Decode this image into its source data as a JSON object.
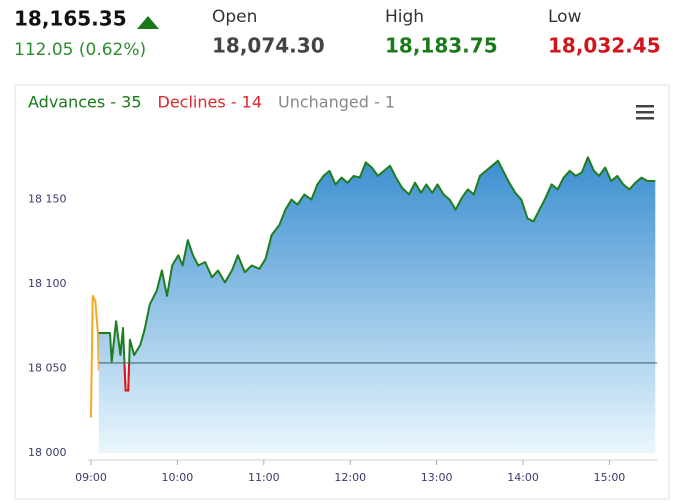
{
  "header": {
    "last": "18,165.35",
    "change": "112.05 (0.62%)",
    "stats": [
      {
        "label": "Open",
        "value": "18,074.30",
        "color": "#444444"
      },
      {
        "label": "High",
        "value": "18,183.75",
        "color": "#1a7a1a"
      },
      {
        "label": "Low",
        "value": "18,032.45",
        "color": "#d0161c"
      }
    ]
  },
  "breadth": [
    {
      "text": "Advances - 35",
      "color": "#1a7a1a"
    },
    {
      "text": "Declines - 14",
      "color": "#e0262e"
    },
    {
      "text": "Unchanged - 1",
      "color": "#888888"
    }
  ],
  "chart_data": {
    "type": "line",
    "xlim": [
      9,
      15.55
    ],
    "ylim": [
      18000,
      18190
    ],
    "xticks": [
      {
        "value": 9,
        "label": "09:00"
      },
      {
        "value": 10,
        "label": "10:00"
      },
      {
        "value": 11,
        "label": "11:00"
      },
      {
        "value": 12,
        "label": "12:00"
      },
      {
        "value": 13,
        "label": "13:00"
      },
      {
        "value": 14,
        "label": "14:00"
      },
      {
        "value": 15,
        "label": "15:00"
      }
    ],
    "yticks": [
      {
        "value": 18000,
        "label": "18 000"
      },
      {
        "value": 18050,
        "label": "18 050"
      },
      {
        "value": 18100,
        "label": "18 100"
      },
      {
        "value": 18150,
        "label": "18 150"
      }
    ],
    "baseline": {
      "value": 18053.3,
      "color": "#3f6b6b"
    },
    "series": [
      {
        "color": "#f5a623",
        "x": [
          9.0,
          9.02,
          9.05,
          9.08,
          9.09
        ],
        "values": [
          18021,
          18093,
          18090,
          18071,
          18049
        ]
      },
      {
        "color": "#1e7d1e",
        "below_color": "#e0141e",
        "fill": [
          "#3b8ed0",
          "#eaf7fd"
        ],
        "x": [
          9.09,
          9.22,
          9.24,
          9.29,
          9.34,
          9.37,
          9.4,
          9.43,
          9.45,
          9.5,
          9.57,
          9.62,
          9.68,
          9.76,
          9.82,
          9.88,
          9.94,
          10.01,
          10.06,
          10.12,
          10.18,
          10.24,
          10.32,
          10.4,
          10.47,
          10.55,
          10.63,
          10.7,
          10.78,
          10.86,
          10.95,
          11.02,
          11.09,
          11.18,
          11.25,
          11.32,
          11.39,
          11.47,
          11.55,
          11.62,
          11.69,
          11.76,
          11.83,
          11.9,
          11.97,
          12.04,
          12.11,
          12.18,
          12.25,
          12.32,
          12.39,
          12.46,
          12.53,
          12.6,
          12.68,
          12.75,
          12.82,
          12.88,
          12.95,
          13.01,
          13.08,
          13.15,
          13.22,
          13.29,
          13.36,
          13.43,
          13.5,
          13.57,
          13.64,
          13.71,
          13.77,
          13.84,
          13.91,
          13.98,
          14.05,
          14.12,
          14.19,
          14.26,
          14.33,
          14.4,
          14.47,
          14.54,
          14.61,
          14.68,
          14.75,
          14.82,
          14.88,
          14.95,
          15.02,
          15.09,
          15.16,
          15.23,
          15.3,
          15.37,
          15.44,
          15.53
        ],
        "values": [
          18071,
          18071,
          18054,
          18078,
          18058,
          18074,
          18037,
          18037,
          18067,
          18058,
          18064,
          18073,
          18088,
          18096,
          18108,
          18093,
          18111,
          18117,
          18111,
          18126,
          18117,
          18111,
          18113,
          18104,
          18108,
          18101,
          18108,
          18117,
          18107,
          18111,
          18109,
          18115,
          18129,
          18135,
          18144,
          18150,
          18147,
          18153,
          18150,
          18159,
          18164,
          18167,
          18159,
          18163,
          18160,
          18164,
          18163,
          18172,
          18169,
          18164,
          18167,
          18170,
          18163,
          18157,
          18153,
          18160,
          18154,
          18159,
          18154,
          18159,
          18153,
          18150,
          18144,
          18151,
          18156,
          18153,
          18164,
          18167,
          18170,
          18173,
          18167,
          18160,
          18154,
          18150,
          18139,
          18137,
          18144,
          18151,
          18159,
          18156,
          18163,
          18167,
          18164,
          18166,
          18175,
          18167,
          18164,
          18169,
          18161,
          18164,
          18159,
          18156,
          18160,
          18163,
          18161,
          18161
        ]
      }
    ]
  }
}
